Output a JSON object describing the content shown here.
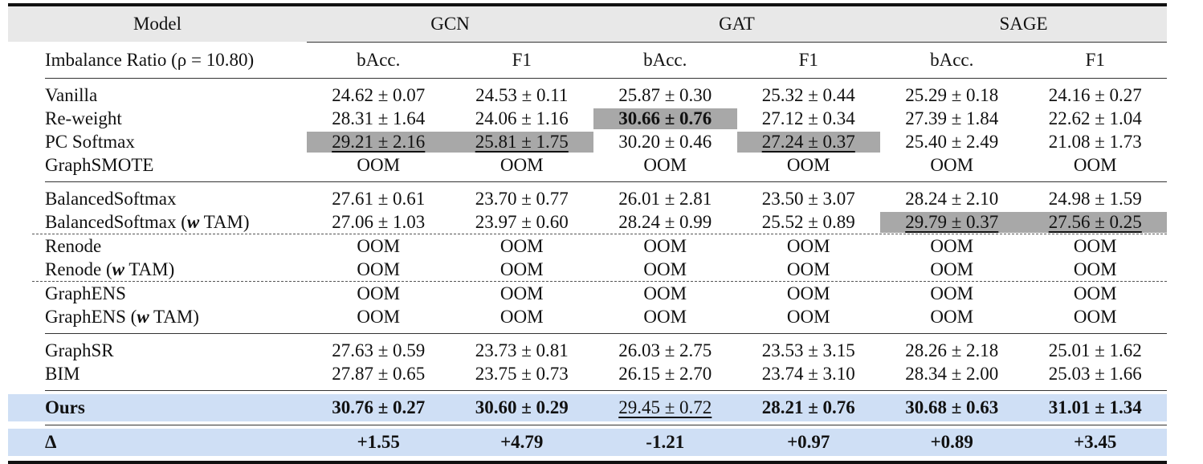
{
  "header": {
    "model_label": "Model",
    "groups": [
      "GCN",
      "GAT",
      "SAGE"
    ],
    "imbalance_label": "Imbalance Ratio (ρ = 10.80)",
    "metrics": [
      "bAcc.",
      "F1",
      "bAcc.",
      "F1",
      "bAcc.",
      "F1"
    ]
  },
  "blocks": [
    {
      "rows": [
        {
          "name": "Vanilla",
          "cells": [
            "24.62 ± 0.07",
            "24.53 ± 0.11",
            "25.87 ± 0.30",
            "25.32 ± 0.44",
            "25.29 ± 0.18",
            "24.16 ± 0.27"
          ]
        },
        {
          "name": "Re-weight",
          "cells": [
            "28.31 ± 1.64",
            "24.06 ± 1.16",
            "30.66 ± 0.76",
            "27.12 ± 0.34",
            "27.39 ± 1.84",
            "22.62 ± 1.04"
          ]
        },
        {
          "name": "PC Softmax",
          "cells": [
            "29.21 ± 2.16",
            "25.81 ± 1.75",
            "30.20 ± 0.46",
            "27.24 ± 0.37",
            "25.40 ± 2.49",
            "21.08 ± 1.73"
          ]
        },
        {
          "name": "GraphSMOTE",
          "cells": [
            "OOM",
            "OOM",
            "OOM",
            "OOM",
            "OOM",
            "OOM"
          ]
        }
      ]
    },
    {
      "rows": [
        {
          "name": "BalancedSoftmax",
          "cells": [
            "27.61 ± 0.61",
            "23.70 ± 0.77",
            "26.01 ± 2.81",
            "23.50 ± 3.07",
            "28.24 ± 2.10",
            "24.98 ± 1.59"
          ]
        },
        {
          "name": "BalancedSoftmax (",
          "w": "w",
          "suffix": " TAM)",
          "cells": [
            "27.06 ± 1.03",
            "23.97 ± 0.60",
            "28.24 ± 0.99",
            "25.52 ± 0.89",
            "29.79 ± 0.37",
            "27.56 ± 0.25"
          ]
        }
      ]
    },
    {
      "rows": [
        {
          "name": "Renode",
          "cells": [
            "OOM",
            "OOM",
            "OOM",
            "OOM",
            "OOM",
            "OOM"
          ]
        },
        {
          "name": "Renode (",
          "w": "w",
          "suffix": " TAM)",
          "cells": [
            "OOM",
            "OOM",
            "OOM",
            "OOM",
            "OOM",
            "OOM"
          ]
        }
      ]
    },
    {
      "rows": [
        {
          "name": "GraphENS",
          "cells": [
            "OOM",
            "OOM",
            "OOM",
            "OOM",
            "OOM",
            "OOM"
          ]
        },
        {
          "name": "GraphENS (",
          "w": "w",
          "suffix": " TAM)",
          "cells": [
            "OOM",
            "OOM",
            "OOM",
            "OOM",
            "OOM",
            "OOM"
          ]
        }
      ]
    },
    {
      "rows": [
        {
          "name": "GraphSR",
          "cells": [
            "27.63 ± 0.59",
            "23.73 ± 0.81",
            "26.03 ± 2.75",
            "23.53 ± 3.15",
            "28.26 ± 2.18",
            "25.01 ± 1.62"
          ]
        },
        {
          "name": "BIM",
          "cells": [
            "27.87 ± 0.65",
            "23.75 ± 0.73",
            "26.15 ± 2.70",
            "23.74 ± 3.10",
            "28.34 ± 2.00",
            "25.03 ± 1.66"
          ]
        }
      ]
    }
  ],
  "ours": {
    "name": "Ours",
    "cells": [
      "30.76 ± 0.27",
      "30.60 ± 0.29",
      "29.45 ± 0.72",
      "28.21 ± 0.76",
      "30.68 ± 0.63",
      "31.01 ± 1.34"
    ]
  },
  "delta": {
    "name": "Δ",
    "cells": [
      "+1.55",
      "+4.79",
      "-1.21",
      "+0.97",
      "+0.89",
      "+3.45"
    ]
  },
  "colors": {
    "header_bg": "#e8e8e8",
    "highlight_bg": "#a8a8a8",
    "ours_bg": "#cfdff5"
  }
}
